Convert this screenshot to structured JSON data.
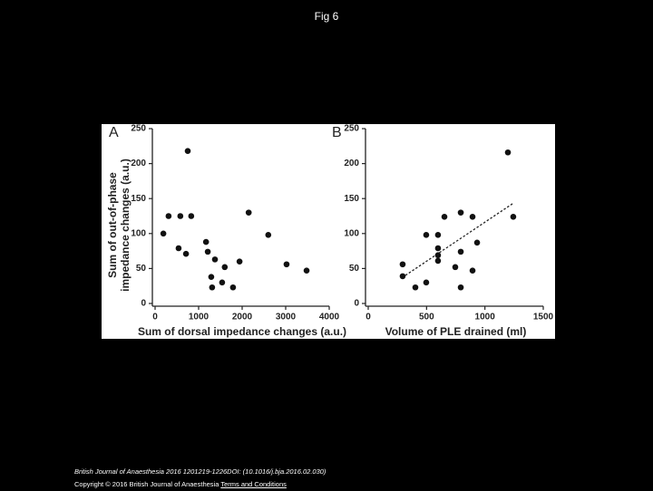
{
  "title": "Fig 6",
  "chart_data": [
    {
      "type": "scatter",
      "panel": "A",
      "xlabel": "Sum of dorsal impedance changes (a.u.)",
      "ylabel": [
        "Sum of out-of-phase",
        "impedance changes (a.u.)"
      ],
      "x": [
        190,
        310,
        580,
        830,
        750,
        540,
        710,
        1170,
        1210,
        1375,
        1290,
        1310,
        1540,
        1600,
        1790,
        1940,
        2150,
        2600,
        3020,
        3480
      ],
      "y": [
        100,
        125,
        125,
        125,
        218,
        79,
        71,
        88,
        74,
        63,
        38,
        23,
        30,
        52,
        23,
        60,
        130,
        98,
        56,
        47
      ],
      "color": "#111111",
      "xlim": [
        0,
        4000
      ],
      "xticks": [
        0,
        1000,
        2000,
        3000,
        4000
      ],
      "ylim": [
        0,
        250
      ],
      "yticks": [
        0,
        50,
        100,
        150,
        200,
        250
      ]
    },
    {
      "type": "scatter",
      "panel": "B",
      "xlabel": "Volume of PLE drained (ml)",
      "x": [
        295,
        295,
        404,
        497,
        497,
        598,
        598,
        598,
        598,
        653,
        746,
        793,
        793,
        793,
        894,
        894,
        933,
        1197,
        1243
      ],
      "y": [
        56,
        39,
        23,
        30,
        98,
        98,
        79,
        69,
        61,
        124,
        52,
        130,
        74,
        23,
        124,
        47,
        87,
        216,
        124
      ],
      "color": "#111111",
      "fit_line": {
        "x": [
          290,
          1240
        ],
        "y": [
          37,
          143
        ]
      },
      "xlim": [
        0,
        1500
      ],
      "xticks": [
        0,
        500,
        1000,
        1500
      ],
      "ylim": [
        0,
        250
      ],
      "yticks": [
        0,
        50,
        100,
        150,
        200,
        250
      ]
    }
  ],
  "footer": {
    "citation": "British Journal of Anaesthesia 2016 1201219-1226DOI: (10.1016/j.bja.2016.02.030)",
    "copyright": "Copyright © 2016 British Journal of Anaesthesia",
    "link": "Terms and Conditions"
  }
}
